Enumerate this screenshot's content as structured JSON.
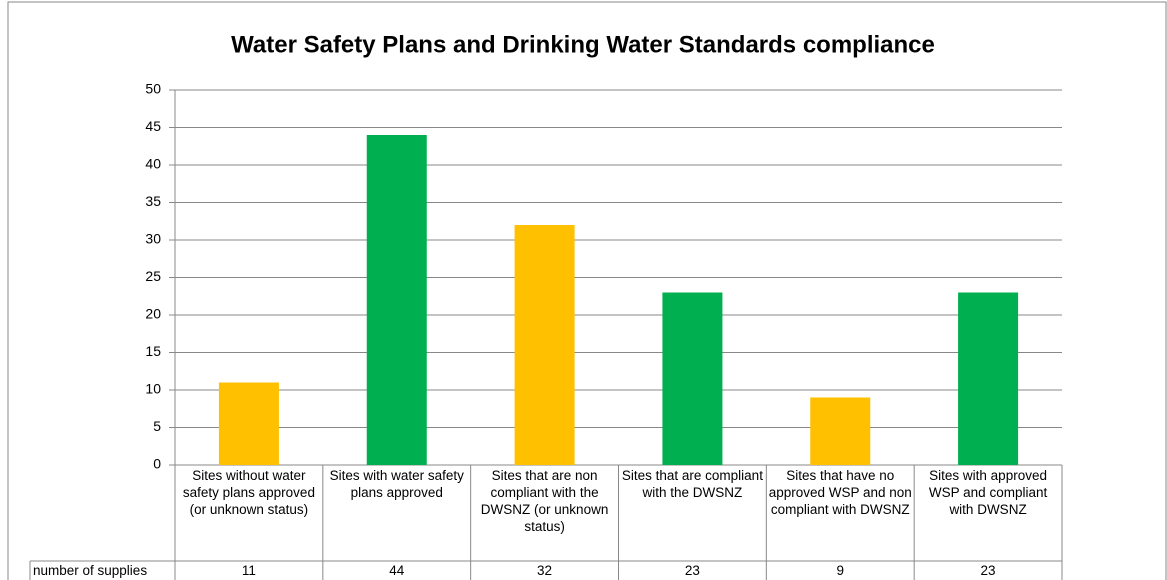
{
  "chart_data": {
    "type": "bar",
    "title": "Water Safety Plans and Drinking Water Standards compliance",
    "categories": [
      "Sites without water safety plans approved (or unknown status)",
      "Sites with water safety plans approved",
      "Sites that are non compliant with the DWSNZ (or unknown status)",
      "Sites that are compliant with the DWSNZ",
      "Sites that have no approved WSP and non compliant with DWSNZ",
      "Sites with approved WSP and compliant with DWSNZ"
    ],
    "series": [
      {
        "name": "number of supplies",
        "values": [
          11,
          44,
          32,
          23,
          9,
          23
        ],
        "colors": [
          "#ffc000",
          "#00b050",
          "#ffc000",
          "#00b050",
          "#ffc000",
          "#00b050"
        ]
      }
    ],
    "ylim": [
      0,
      50
    ],
    "yticks": [
      0,
      5,
      10,
      15,
      20,
      25,
      30,
      35,
      40,
      45,
      50
    ],
    "grid": true,
    "data_table": true
  }
}
